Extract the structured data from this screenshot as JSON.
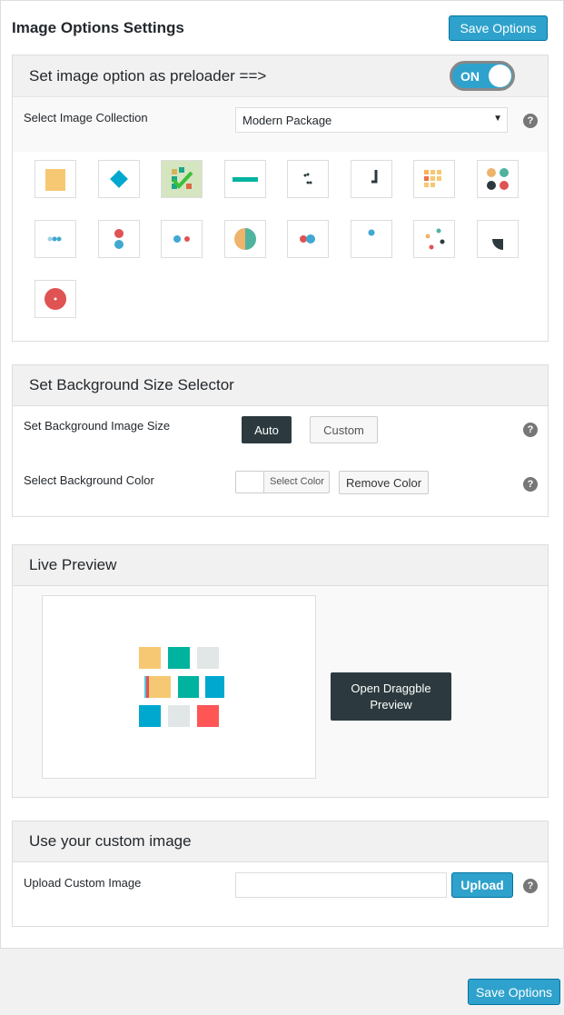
{
  "page": {
    "title": "Image Options Settings",
    "save_label": "Save Options"
  },
  "preloader": {
    "heading": "Set image option as preloader ==>",
    "toggle": "ON",
    "toggle_on": true,
    "collection_label": "Select Image Collection",
    "collection_value": "Modern Package",
    "icons": [
      "square-loader",
      "diamond-loader",
      "grid-loader-selected",
      "bar-loader",
      "dots-scatter-loader",
      "corner-loader",
      "orange-grid-loader",
      "four-dots-loader",
      "three-dots-loader",
      "vertical-dots-loader",
      "two-dots-loader",
      "half-circle-loader",
      "bouncing-dots-loader",
      "single-dot-loader",
      "spinner-dots-loader",
      "quarter-circle-loader",
      "ring-loader"
    ],
    "selected_index": 2
  },
  "background": {
    "heading": "Set Background Size Selector",
    "size_label": "Set Background Image Size",
    "auto": "Auto",
    "custom": "Custom",
    "selected": "Auto",
    "color_label": "Select Background Color",
    "select_color": "Select Color",
    "remove_color": "Remove Color"
  },
  "preview": {
    "heading": "Live Preview",
    "open_button": "Open Draggble Preview"
  },
  "custom": {
    "heading": "Use your custom image",
    "upload_label": "Upload Custom Image",
    "input_value": "",
    "upload_button": "Upload"
  },
  "colors": {
    "accent": "#2ea2cc",
    "dark": "#2c3a3f",
    "yellow": "#f7c873",
    "teal": "#00b39f",
    "red": "#e05353",
    "blue": "#3fa9d2"
  }
}
